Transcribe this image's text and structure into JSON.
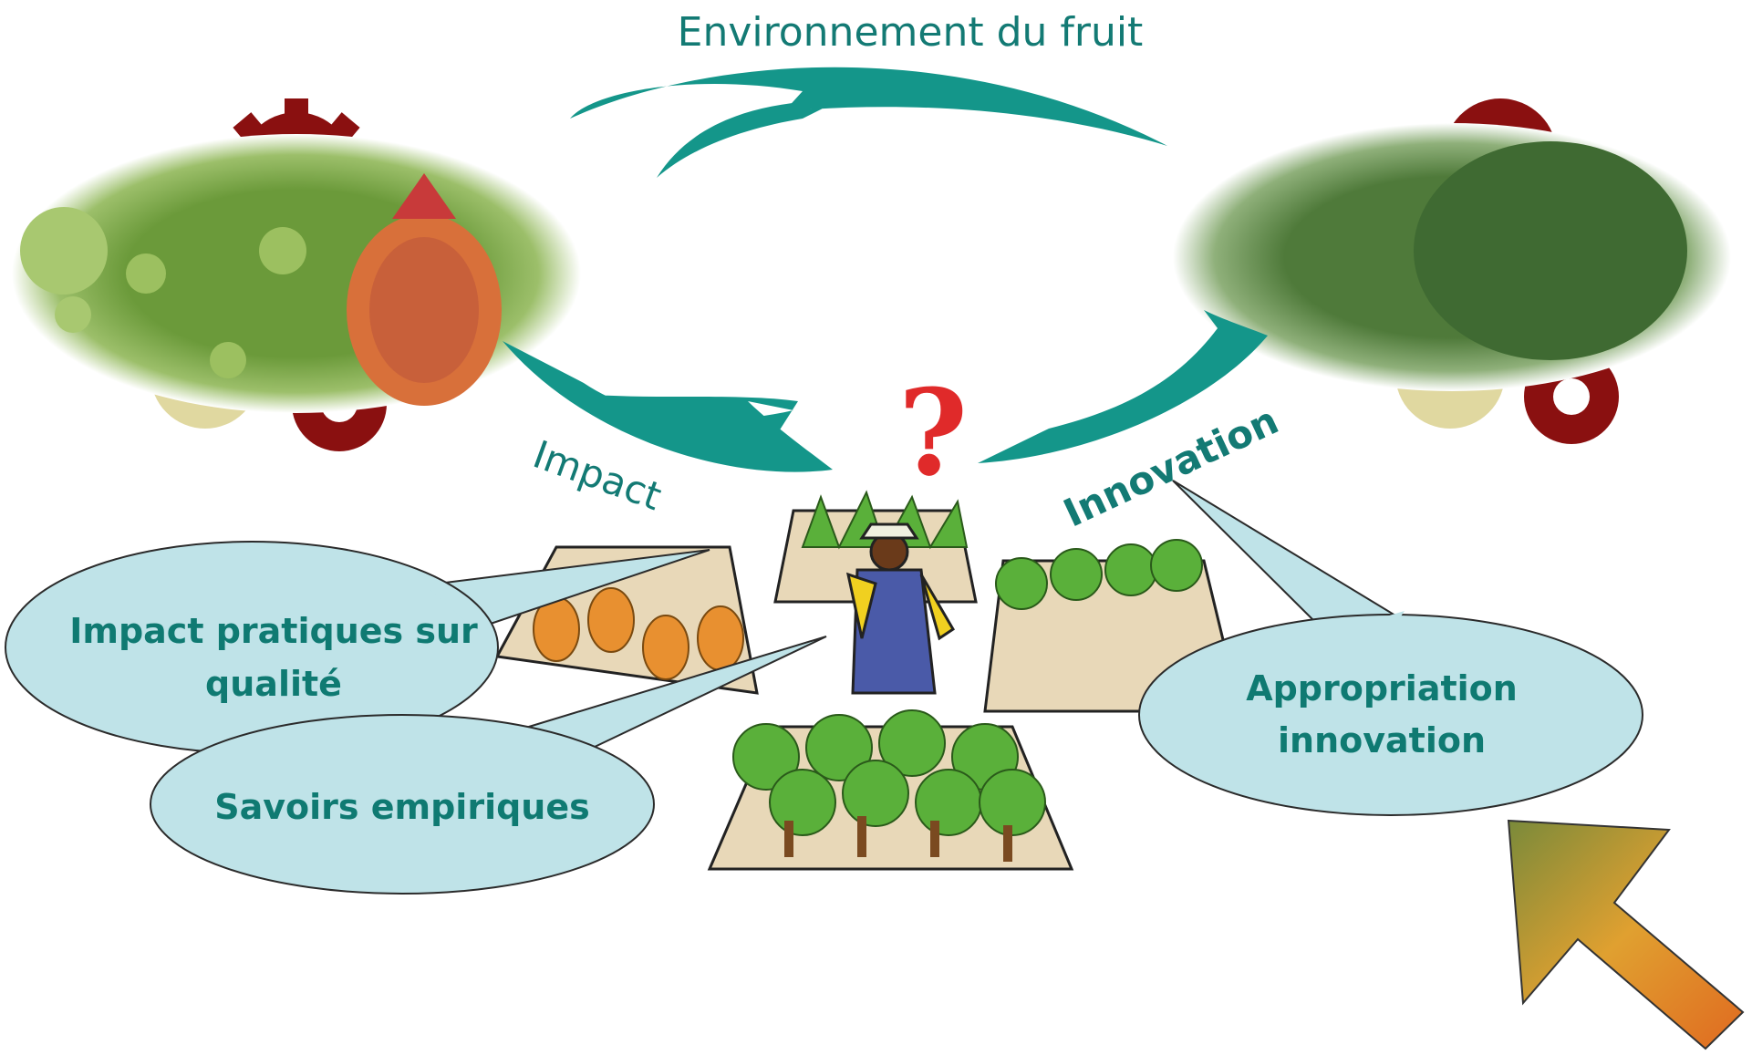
{
  "title": "Environnement du fruit",
  "arrow_labels": {
    "left": "Impact",
    "right": "Innovation"
  },
  "symbol": "?",
  "bubbles": [
    {
      "lines": [
        "Impact pratiques sur",
        "qualité"
      ]
    },
    {
      "lines": [
        "Savoirs empiriques"
      ]
    },
    {
      "lines": [
        "Appropriation",
        "innovation"
      ]
    }
  ]
}
